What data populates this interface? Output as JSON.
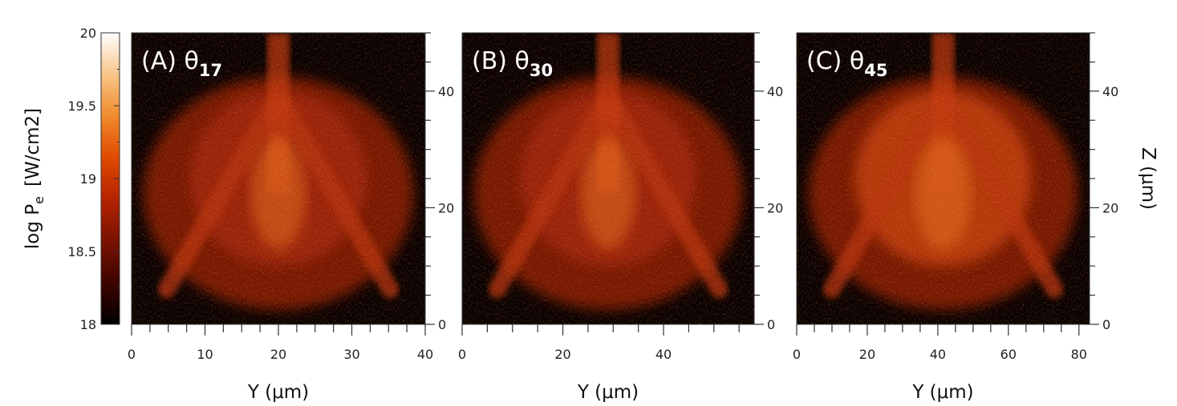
{
  "colorbar": {
    "label_main": "log P",
    "label_sub": "e",
    "label_unit": "[W/cm2]",
    "ticks": [
      "18",
      "18.5",
      "19",
      "19.5",
      "20"
    ],
    "colors": [
      "#000000",
      "#3d0400",
      "#7a1200",
      "#b52300",
      "#e04a00",
      "#f08a2c",
      "#f8c58a",
      "#ffffff"
    ]
  },
  "chart_data": [
    {
      "type": "heatmap",
      "panel_label": "(A) θ",
      "panel_sub": "17",
      "xlabel": "Y (μm)",
      "ylabel": "",
      "xlim": [
        0,
        40
      ],
      "ylim": [
        0,
        50
      ],
      "x_ticks": [
        "0",
        "10",
        "20",
        "30",
        "40"
      ],
      "y_ticks": [
        "0",
        "20",
        "40"
      ],
      "colorscale_range": [
        18,
        20
      ],
      "colorscale_label": "log Pe [W/cm2]"
    },
    {
      "type": "heatmap",
      "panel_label": "(B) θ",
      "panel_sub": "30",
      "xlabel": "Y (μm)",
      "ylabel": "",
      "xlim": [
        0,
        58
      ],
      "ylim": [
        0,
        50
      ],
      "x_ticks": [
        "0",
        "20",
        "40"
      ],
      "y_ticks": [
        "0",
        "20",
        "40"
      ],
      "colorscale_range": [
        18,
        20
      ],
      "colorscale_label": "log Pe [W/cm2]"
    },
    {
      "type": "heatmap",
      "panel_label": "(C) θ",
      "panel_sub": "45",
      "xlabel": "Y (μm)",
      "ylabel": "Z (μm)",
      "xlim": [
        0,
        83
      ],
      "ylim": [
        0,
        50
      ],
      "x_ticks": [
        "0",
        "20",
        "40",
        "60",
        "80"
      ],
      "y_ticks": [
        "0",
        "20",
        "40"
      ],
      "colorscale_range": [
        18,
        20
      ],
      "colorscale_label": "log Pe [W/cm2]"
    }
  ]
}
